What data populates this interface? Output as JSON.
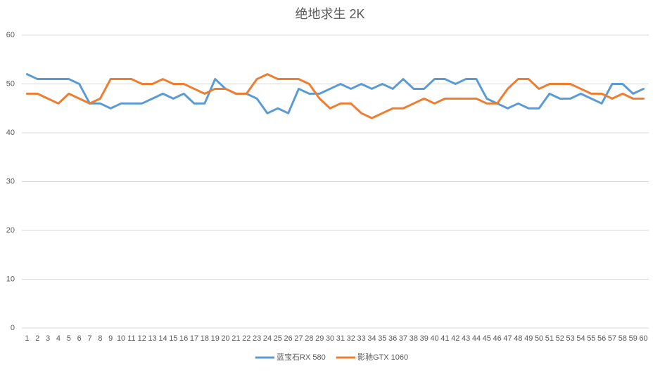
{
  "chart_data": {
    "type": "line",
    "title": "绝地求生 2K",
    "categories": [
      "1",
      "2",
      "3",
      "4",
      "5",
      "6",
      "7",
      "8",
      "9",
      "10",
      "11",
      "12",
      "13",
      "14",
      "15",
      "16",
      "17",
      "18",
      "19",
      "20",
      "21",
      "22",
      "23",
      "24",
      "25",
      "26",
      "27",
      "28",
      "29",
      "30",
      "31",
      "32",
      "33",
      "34",
      "35",
      "36",
      "37",
      "38",
      "39",
      "40",
      "41",
      "42",
      "43",
      "44",
      "45",
      "46",
      "47",
      "48",
      "49",
      "50",
      "51",
      "52",
      "53",
      "54",
      "55",
      "56",
      "57",
      "58",
      "59",
      "60"
    ],
    "series": [
      {
        "name": "蓝宝石RX 580",
        "color": "#5b9bd5",
        "values": [
          52,
          51,
          51,
          51,
          51,
          50,
          46,
          46,
          45,
          46,
          46,
          46,
          47,
          48,
          47,
          48,
          46,
          46,
          51,
          49,
          48,
          48,
          47,
          44,
          45,
          44,
          49,
          48,
          48,
          49,
          50,
          49,
          50,
          49,
          50,
          49,
          51,
          49,
          49,
          51,
          51,
          50,
          51,
          51,
          47,
          46,
          45,
          46,
          45,
          45,
          48,
          47,
          47,
          48,
          47,
          46,
          50,
          50,
          48,
          49
        ]
      },
      {
        "name": "影驰GTX 1060",
        "color": "#ed7d31",
        "values": [
          48,
          48,
          47,
          46,
          48,
          47,
          46,
          47,
          51,
          51,
          51,
          50,
          50,
          51,
          50,
          50,
          49,
          48,
          49,
          49,
          48,
          48,
          51,
          52,
          51,
          51,
          51,
          50,
          47,
          45,
          46,
          46,
          44,
          43,
          44,
          45,
          45,
          46,
          47,
          46,
          47,
          47,
          47,
          47,
          46,
          46,
          49,
          51,
          51,
          49,
          50,
          50,
          50,
          49,
          48,
          48,
          47,
          48,
          47,
          47
        ]
      }
    ],
    "ylim": [
      0,
      60
    ],
    "yticks": [
      0,
      10,
      20,
      30,
      40,
      50,
      60
    ],
    "grid": true,
    "legend": "bottom"
  }
}
